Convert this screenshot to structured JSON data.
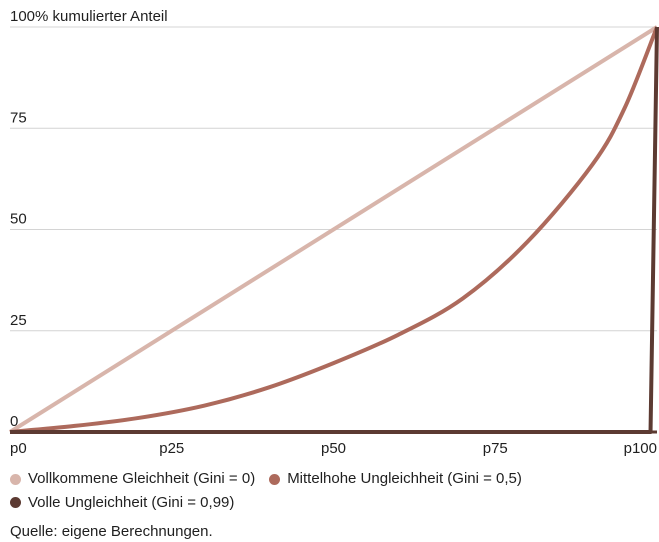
{
  "chart_data": {
    "type": "line",
    "title": "",
    "ylabel": "100% kumulierter Anteil",
    "xlabel": "",
    "xlim": [
      0,
      100
    ],
    "ylim": [
      0,
      100
    ],
    "x_ticks": [
      {
        "value": 0,
        "label": "p0"
      },
      {
        "value": 25,
        "label": "p25"
      },
      {
        "value": 50,
        "label": "p50"
      },
      {
        "value": 75,
        "label": "p75"
      },
      {
        "value": 100,
        "label": "p100"
      }
    ],
    "y_ticks": [
      {
        "value": 0,
        "label": "0"
      },
      {
        "value": 25,
        "label": "25"
      },
      {
        "value": 50,
        "label": "50"
      },
      {
        "value": 75,
        "label": "75"
      },
      {
        "value": 100,
        "label": "100% kumulierter Anteil"
      }
    ],
    "grid": "horizontal",
    "legend_position": "bottom",
    "series": [
      {
        "name": "Vollkommene Gleichheit (Gini = 0)",
        "color": "#d8b5ab",
        "x": [
          0,
          100
        ],
        "y": [
          0,
          100
        ]
      },
      {
        "name": "Mittelhohe Ungleichheit (Gini = 0,5)",
        "color": "#ad6a5c",
        "x": [
          0,
          10,
          20,
          30,
          40,
          50,
          60,
          70,
          80,
          90,
          95,
          100
        ],
        "y": [
          0,
          1.5,
          3.5,
          6.5,
          11,
          17,
          24,
          33,
          47,
          66,
          80,
          100
        ]
      },
      {
        "name": "Volle Ungleichheit (Gini = 0,99)",
        "color": "#5c3a32",
        "x": [
          0,
          99,
          100
        ],
        "y": [
          0,
          0,
          100
        ]
      }
    ]
  },
  "source": "Quelle: eigene Berechnungen."
}
